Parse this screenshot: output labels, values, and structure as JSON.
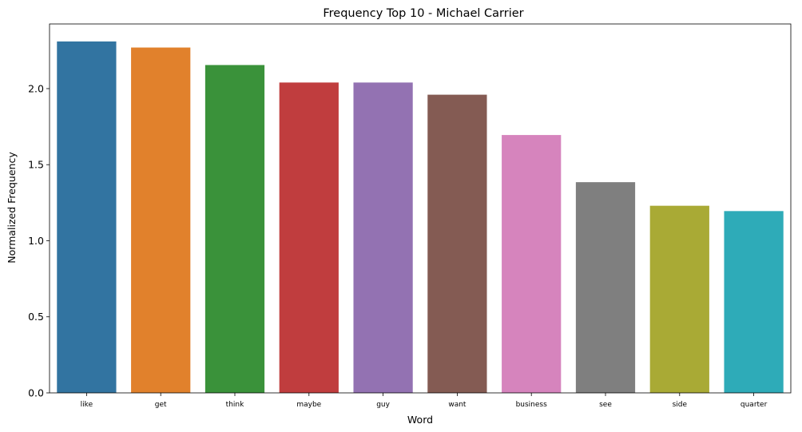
{
  "chart_data": {
    "type": "bar",
    "title": "Frequency Top 10 - Michael Carrier",
    "xlabel": "Word",
    "ylabel": "Normalized Frequency",
    "categories": [
      "like",
      "get",
      "think",
      "maybe",
      "guy",
      "want",
      "business",
      "see",
      "side",
      "quarter"
    ],
    "values": [
      2.31,
      2.27,
      2.155,
      2.04,
      2.04,
      1.96,
      1.695,
      1.385,
      1.23,
      1.195
    ],
    "colors": [
      "#3274a1",
      "#e1812c",
      "#3a923a",
      "#c03d3e",
      "#9372b2",
      "#845b53",
      "#d684bd",
      "#7f7f7f",
      "#a9aa35",
      "#2eabb8"
    ],
    "yticks": [
      0.0,
      0.5,
      1.0,
      1.5,
      2.0
    ],
    "ytick_labels": [
      "0.0",
      "0.5",
      "1.0",
      "1.5",
      "2.0"
    ],
    "ylim": [
      0,
      2.425
    ],
    "grid": false,
    "legend": "none"
  }
}
